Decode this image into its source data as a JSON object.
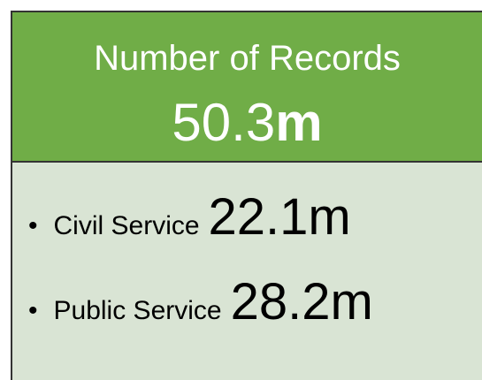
{
  "header": {
    "title": "Number of Records",
    "value": "50.3",
    "unit": "m"
  },
  "items": [
    {
      "label": "Civil Service",
      "value": "22.1m"
    },
    {
      "label": "Public Service",
      "value": "28.2m"
    }
  ]
}
